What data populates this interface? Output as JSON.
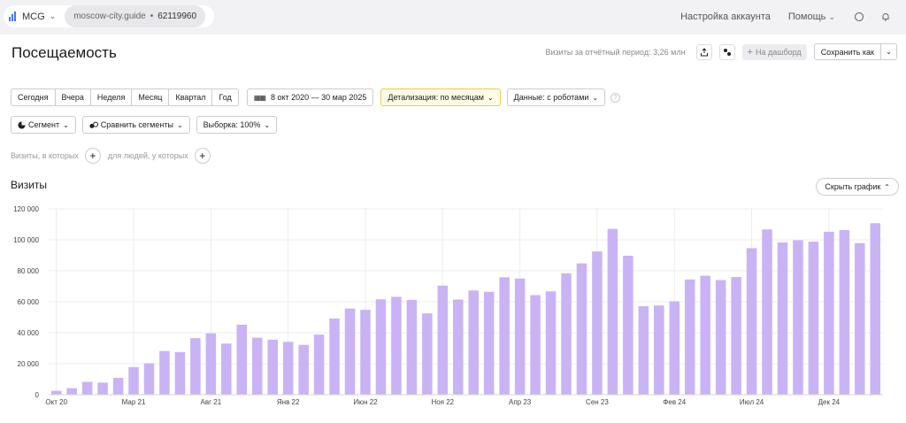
{
  "topbar": {
    "app_name": "MCG",
    "site": "moscow-city.guide",
    "separator": "•",
    "counter_id": "62119960",
    "account_settings": "Настройка аккаунта",
    "help": "Помощь"
  },
  "header": {
    "title": "Посещаемость",
    "visits_note": "Визиты за отчётный период: 3,26 млн",
    "dashboard_label": "На дашборд",
    "save_as_label": "Сохранить как"
  },
  "periods": [
    "Сегодня",
    "Вчера",
    "Неделя",
    "Месяц",
    "Квартал",
    "Год"
  ],
  "filters": {
    "date_range": "8 окт 2020 — 30 мар 2025",
    "detail": "Детализация: по месяцам",
    "data": "Данные: с роботами",
    "segment": "Сегмент",
    "compare": "Сравнить сегменты",
    "sample": "Выборка: 100%",
    "visits_where": "Визиты, в которых",
    "people_where": "для людей, у которых"
  },
  "chart_section": {
    "title": "Визиты",
    "hide_label": "Скрыть график"
  },
  "colors": {
    "bar": "#c9b3f5",
    "grid": "#ececec",
    "accent": "#3d7bf5",
    "highlight": "#f2c94c"
  },
  "chart_data": {
    "type": "bar",
    "title": "Визиты",
    "xlabel": "",
    "ylabel": "",
    "ylim": [
      0,
      120000
    ],
    "yticks": [
      "0",
      "20 000",
      "40 000",
      "60 000",
      "80 000",
      "100 000",
      "120 000"
    ],
    "ytick_values": [
      0,
      20000,
      40000,
      60000,
      80000,
      100000,
      120000
    ],
    "xtick_labels": [
      {
        "index": 0,
        "label": "Окт 20"
      },
      {
        "index": 5,
        "label": "Мар 21"
      },
      {
        "index": 10,
        "label": "Авг 21"
      },
      {
        "index": 15,
        "label": "Янв 22"
      },
      {
        "index": 20,
        "label": "Июн 22"
      },
      {
        "index": 25,
        "label": "Ноя 22"
      },
      {
        "index": 30,
        "label": "Апр 23"
      },
      {
        "index": 35,
        "label": "Сен 23"
      },
      {
        "index": 40,
        "label": "Фев 24"
      },
      {
        "index": 45,
        "label": "Июл 24"
      },
      {
        "index": 50,
        "label": "Дек 24"
      }
    ],
    "values": [
      2500,
      4200,
      8300,
      7800,
      10900,
      17800,
      20300,
      28200,
      27500,
      36500,
      39600,
      33000,
      45200,
      36800,
      35500,
      34100,
      32200,
      38800,
      49200,
      55600,
      54800,
      61600,
      63200,
      61200,
      52500,
      70400,
      61400,
      67300,
      66400,
      75800,
      75000,
      64300,
      66700,
      78400,
      84800,
      92500,
      107100,
      89700,
      57100,
      57600,
      60300,
      74400,
      76800,
      74000,
      76000,
      94600,
      106700,
      98300,
      99700,
      98800,
      105200,
      106300,
      97900,
      110700
    ]
  }
}
